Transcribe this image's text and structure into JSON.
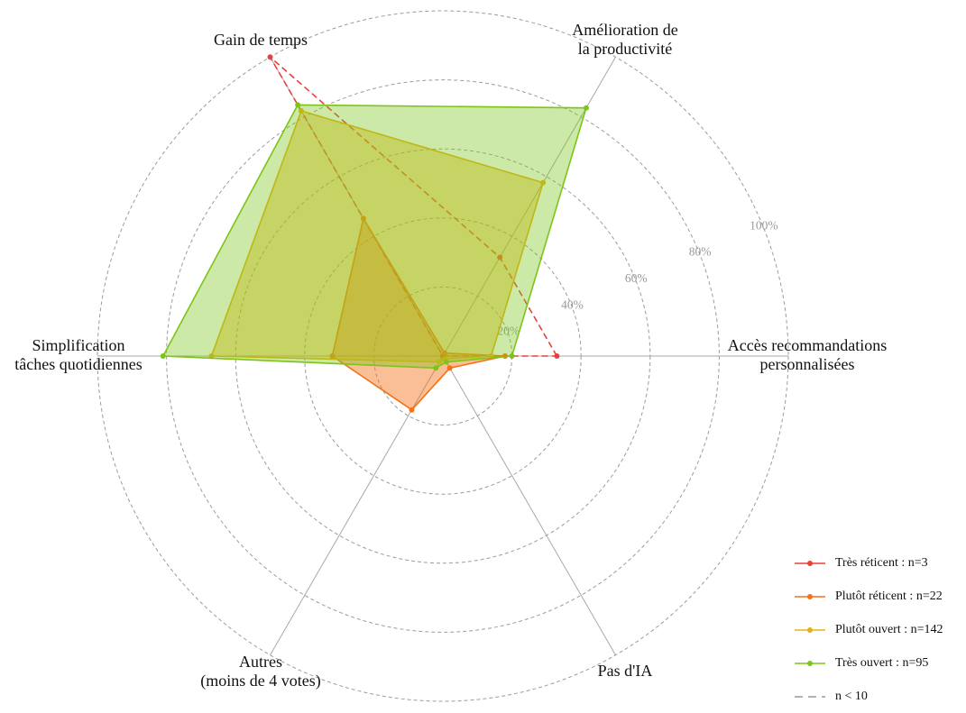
{
  "chart_data": {
    "type": "radar",
    "axes": [
      [
        "Accès recommandations",
        "personnalisées"
      ],
      [
        "Amélioration de",
        "la productivité"
      ],
      [
        "Gain de temps"
      ],
      [
        "Simplification",
        "tâches quotidiennes"
      ],
      [
        "Autres",
        "(moins de 4 votes)"
      ],
      [
        "Pas d'IA"
      ]
    ],
    "r_ticks": [
      "20%",
      "40%",
      "60%",
      "80%",
      "100%"
    ],
    "r_tick_values": [
      20,
      40,
      60,
      80,
      100
    ],
    "rlim": [
      0,
      100
    ],
    "grid": true,
    "legend_position": "bottom-right",
    "series": [
      {
        "name": "Très réticent : n=3",
        "color": "#e8413a",
        "dashed": true,
        "fill": false,
        "values": [
          33,
          33,
          100,
          0,
          0,
          0
        ]
      },
      {
        "name": "Plutôt réticent : n=22",
        "color": "#f47216",
        "dashed": false,
        "fill": true,
        "fill_opacity": 0.45,
        "values": [
          18,
          1,
          46,
          32,
          18,
          4
        ]
      },
      {
        "name": "Plutôt ouvert : n=142",
        "color": "#e6b014",
        "dashed": false,
        "fill": true,
        "fill_opacity": 0.45,
        "values": [
          14,
          58,
          82,
          67,
          2,
          1
        ]
      },
      {
        "name": "Très ouvert : n=95",
        "color": "#7cc518",
        "dashed": false,
        "fill": true,
        "fill_opacity": 0.38,
        "values": [
          20,
          83,
          84,
          81,
          4,
          2
        ]
      }
    ],
    "legend_extra": {
      "name": "n < 10",
      "color": "#999999",
      "dashed": true
    }
  }
}
